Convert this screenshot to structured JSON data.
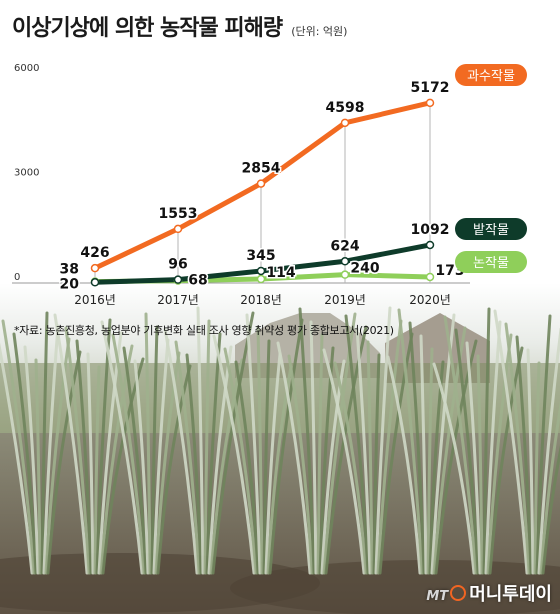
{
  "header": {
    "title": "이상기상에 의한 농작물 피해량",
    "unit": "(단위: 억원)"
  },
  "source": "*자료: 농촌진흥청, 농업분야 기후변화 실태 조사 영향 취약성 평가 종합보고서(2021)",
  "logo": {
    "mt": "MT",
    "name": "머니투데이"
  },
  "chart_data": {
    "type": "line",
    "title": "이상기상에 의한 농작물 피해량",
    "ylabel": "(단위: 억원)",
    "xlabel": "",
    "x": [
      "2016년",
      "2017년",
      "2018년",
      "2019년",
      "2020년"
    ],
    "ylim": [
      0,
      6000
    ],
    "yticks": [
      "0",
      "3000",
      "6000"
    ],
    "grid": false,
    "legend": "right",
    "series": [
      {
        "name": "과수작물",
        "color": "#f26a21",
        "values": [
          426,
          1553,
          2854,
          4598,
          5172
        ],
        "labels": [
          "426",
          "1553",
          "2854",
          "4598",
          "5172"
        ]
      },
      {
        "name": "밭작물",
        "color": "#0e3b2a",
        "values": [
          20,
          96,
          345,
          624,
          1092
        ],
        "labels": [
          "20",
          "96",
          "345",
          "624",
          "1092"
        ]
      },
      {
        "name": "논작물",
        "color": "#8fcf5a",
        "values": [
          38,
          68,
          114,
          240,
          173
        ],
        "labels": [
          "38",
          "68",
          "114",
          "240",
          "173"
        ]
      }
    ]
  }
}
